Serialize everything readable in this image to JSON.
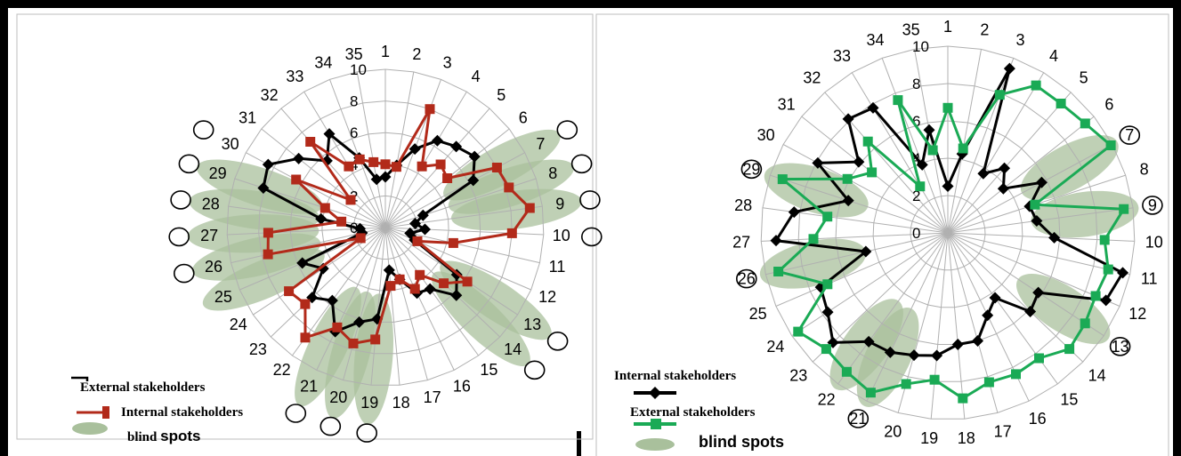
{
  "colors": {
    "external_left": "#000000",
    "internal_left": "#b22a1a",
    "internal_right": "#000000",
    "external_right": "#1aaa55",
    "blind_spot": "#a9c09c",
    "grid": "#b0b0b0"
  },
  "chart_data": [
    {
      "type": "radar",
      "categories": [
        "1",
        "2",
        "3",
        "4",
        "5",
        "6",
        "7",
        "8",
        "9",
        "10",
        "11",
        "12",
        "13",
        "14",
        "15",
        "16",
        "17",
        "18",
        "19",
        "20",
        "21",
        "22",
        "23",
        "24",
        "25",
        "26",
        "27",
        "28",
        "29",
        "30",
        "31",
        "32",
        "33",
        "34",
        "35"
      ],
      "radial_tick_labels": [
        "0",
        "2",
        "4",
        "6",
        "8",
        "10"
      ],
      "rlim": [
        0,
        10
      ],
      "grid": true,
      "legend_position": "bottom-left",
      "legend_blind_spot_label_part1": "blind",
      "legend_blind_spot_label_part2": "spots",
      "series": [
        {
          "name": "External stakeholders",
          "marker": "diamond",
          "values": [
            3.2,
            4.0,
            5.3,
            6.4,
            6.8,
            7.2,
            6.3,
            2.5,
            1.9,
            2.5,
            1.6,
            2.0,
            5.4,
            6.2,
            4.8,
            4.6,
            3.4,
            2.7,
            5.8,
            6.2,
            7.3,
            5.7,
            6.4,
            4.7,
            5.7,
            1.5,
            1.6,
            4.1,
            8.1,
            8.4,
            7.0,
            5.6,
            6.9,
            4.7,
            3.1
          ]
        },
        {
          "name": "Internal stakeholders",
          "marker": "square",
          "values": [
            4.0,
            3.9,
            8.0,
            4.5,
            5.3,
            5.0,
            8.0,
            8.2,
            9.2,
            8.0,
            4.4,
            2.2,
            6.2,
            5.1,
            3.7,
            4.3,
            3.4,
            3.7,
            7.1,
            7.6,
            7.0,
            8.6,
            7.0,
            7.3,
            1.7,
            7.6,
            7.4,
            2.8,
            4.0,
            6.4,
            2.8,
            7.2,
            4.5,
            4.6,
            4.2
          ]
        }
      ],
      "blind_spots": [
        7,
        8,
        9,
        13,
        14,
        19,
        20,
        21,
        25,
        26,
        27,
        28,
        29
      ],
      "circle_markers": [
        7,
        8,
        9,
        10,
        13,
        14,
        19,
        20,
        21,
        26,
        27,
        28,
        29,
        30
      ]
    },
    {
      "type": "radar",
      "categories": [
        "1",
        "2",
        "3",
        "4",
        "5",
        "6",
        "7",
        "8",
        "9",
        "10",
        "11",
        "12",
        "13",
        "14",
        "15",
        "16",
        "17",
        "18",
        "19",
        "20",
        "21",
        "22",
        "23",
        "24",
        "25",
        "26",
        "27",
        "28",
        "29",
        "30",
        "31",
        "32",
        "33",
        "34",
        "35"
      ],
      "radial_tick_labels": [
        "0",
        "2",
        "4",
        "6",
        "8",
        "10"
      ],
      "rlim": [
        0,
        10
      ],
      "grid": true,
      "legend_position": "bottom-left",
      "legend_blind_spot_label": "blind spots",
      "series": [
        {
          "name": "Internal stakeholders",
          "marker": "diamond",
          "values": [
            2.5,
            4.3,
            9.4,
            3.7,
            4.6,
            3.8,
            5.7,
            4.6,
            4.8,
            5.7,
            9.6,
            9.2,
            5.8,
            6.1,
            4.3,
            4.9,
            6.0,
            6.0,
            6.6,
            6.8,
            7.1,
            7.2,
            8.5,
            7.7,
            7.4,
            4.5,
            9.2,
            8.3,
            5.6,
            7.9,
            6.1,
            8.1,
            7.8,
            3.9,
            5.6
          ]
        },
        {
          "name": "External stakeholders",
          "marker": "square",
          "values": [
            6.7,
            4.6,
            7.9,
            9.2,
            9.2,
            9.4,
            9.9,
            4.9,
            9.5,
            8.4,
            8.8,
            8.6,
            8.8,
            9.0,
            8.3,
            8.4,
            8.3,
            8.9,
            7.9,
            8.4,
            9.5,
            9.2,
            9.0,
            9.6,
            7.0,
            9.3,
            7.2,
            6.5,
            9.3,
            6.1,
            5.2,
            6.5,
            2.9,
            7.6,
            4.5
          ]
        }
      ],
      "blind_spots": [
        7,
        9,
        13,
        21,
        22,
        26,
        29
      ],
      "circle_markers": [
        7,
        9,
        13,
        21,
        26,
        29
      ]
    }
  ]
}
